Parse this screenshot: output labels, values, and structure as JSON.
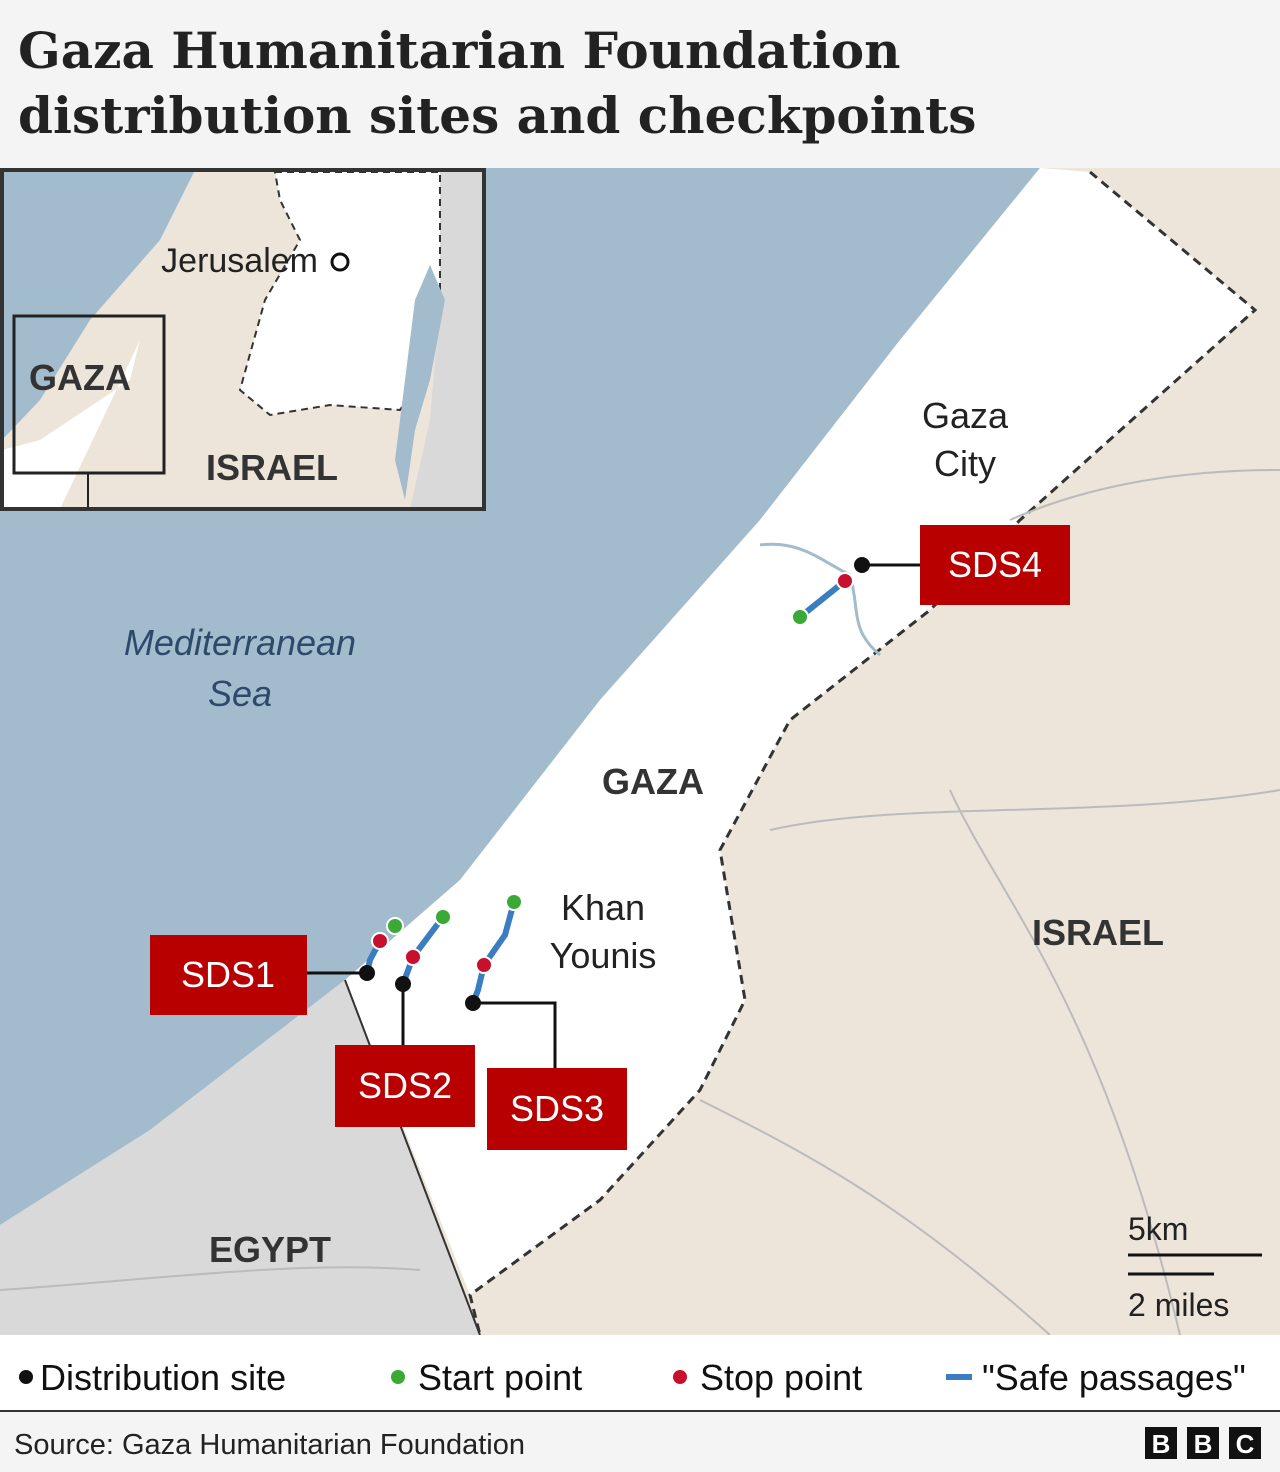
{
  "header": {
    "title_lines": [
      "Gaza Humanitarian Foundation",
      "distribution sites and checkpoints"
    ]
  },
  "inset": {
    "labels": {
      "city": "Jerusalem",
      "gaza": "GAZA",
      "israel": "ISRAEL"
    }
  },
  "map": {
    "sea": [
      "Mediterranean",
      "Sea"
    ],
    "gaza_city": [
      "Gaza",
      "City"
    ],
    "gaza": "GAZA",
    "khan_younis": [
      "Khan",
      "Younis"
    ],
    "israel": "ISRAEL",
    "egypt": "EGYPT",
    "sites": [
      "SDS1",
      "SDS2",
      "SDS3",
      "SDS4"
    ],
    "scale": {
      "km": "5km",
      "miles": "2 miles"
    }
  },
  "legend": [
    "Distribution site",
    "Start point",
    "Stop point",
    "\"Safe passages\""
  ],
  "footer": {
    "source": "Source: Gaza Humanitarian Foundation",
    "logo": [
      "B",
      "B",
      "C"
    ]
  }
}
